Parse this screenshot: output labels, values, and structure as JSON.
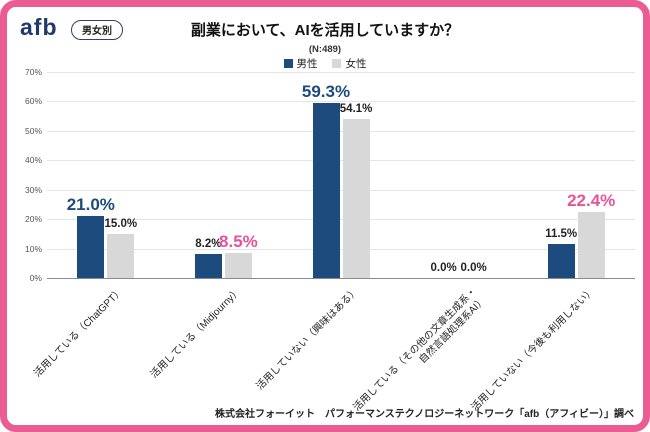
{
  "header": {
    "logo": "afb",
    "badge": "男女別"
  },
  "chart_data": {
    "type": "bar",
    "title": "副業において、AIを活用していますか？",
    "n_label": "(N:489)",
    "ylim": [
      0,
      70
    ],
    "yticks": [
      "0%",
      "10%",
      "20%",
      "30%",
      "40%",
      "50%",
      "60%",
      "70%"
    ],
    "legend_position": "top-center",
    "grid": true,
    "series": [
      {
        "name": "男性",
        "color": "#1d4b7d"
      },
      {
        "name": "女性",
        "color": "#d8d8d8"
      }
    ],
    "categories": [
      "活用している（ChatGPT）",
      "活用している（Midjourny）",
      "活用していない（興味はある）",
      "活用している（その他の文章生成系・自然言語処理系AI）",
      "活用していない（今後も利用しない）"
    ],
    "groups": [
      {
        "category": "活用している（ChatGPT）",
        "male": {
          "value": 21.0,
          "label": "21.0%",
          "emph": "navy"
        },
        "female": {
          "value": 15.0,
          "label": "15.0%",
          "emph": "none"
        }
      },
      {
        "category": "活用している（Midjourny）",
        "male": {
          "value": 8.2,
          "label": "8.2%",
          "emph": "none"
        },
        "female": {
          "value": 8.5,
          "label": "8.5%",
          "emph": "pink"
        }
      },
      {
        "category": "活用していない（興味はある）",
        "male": {
          "value": 59.3,
          "label": "59.3%",
          "emph": "navy"
        },
        "female": {
          "value": 54.1,
          "label": "54.1%",
          "emph": "none"
        }
      },
      {
        "category": "活用している（その他の文章生成系・\n自然言語処理系AI）",
        "male": {
          "value": 0.0,
          "label": "0.0%",
          "emph": "none"
        },
        "female": {
          "value": 0.0,
          "label": "0.0%",
          "emph": "none"
        }
      },
      {
        "category": "活用していない（今後も利用しない）",
        "male": {
          "value": 11.5,
          "label": "11.5%",
          "emph": "none"
        },
        "female": {
          "value": 22.4,
          "label": "22.4%",
          "emph": "pink"
        }
      }
    ]
  },
  "colors": {
    "male": "#1d4b7d",
    "female": "#d8d8d8",
    "pink": "#e85298",
    "frame": "#eb5c95"
  },
  "footer": {
    "source": "株式会社フォーイット　パフォーマンステクノロジーネットワーク「afb（アフィビー）」調べ"
  }
}
